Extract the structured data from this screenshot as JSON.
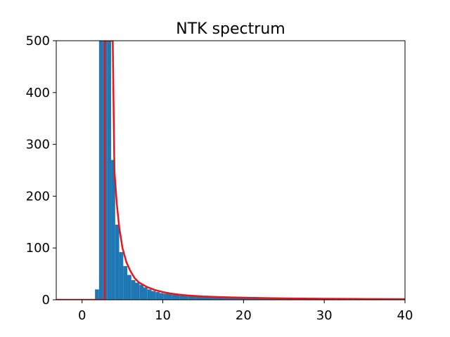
{
  "chart_data": {
    "type": "bar",
    "title": "NTK spectrum",
    "xlabel": "",
    "ylabel": "",
    "xlim": [
      -3.2,
      40
    ],
    "ylim": [
      0,
      500
    ],
    "xticks": [
      0,
      10,
      20,
      30,
      40
    ],
    "yticks": [
      0,
      100,
      200,
      300,
      400,
      500
    ],
    "grid": false,
    "legend": "none",
    "colors": {
      "bars": "#1f77b4",
      "curve": "#e8151b",
      "axes": "#000000",
      "background": "#ffffff"
    },
    "histogram": {
      "bin_edges": [
        1.6,
        2.1,
        2.6,
        3.1,
        3.6,
        4.1,
        4.6,
        5.1,
        5.6,
        6.1,
        6.6,
        7.1,
        7.6,
        8.1,
        8.6,
        9.1,
        9.6,
        10.1,
        11.1,
        12.1,
        13.1,
        14.1,
        16.1,
        18.1,
        20.1,
        24.1,
        28.1,
        32.1,
        36.1,
        40.0
      ],
      "counts": [
        20,
        500,
        500,
        500,
        270,
        145,
        92,
        65,
        48,
        38,
        33,
        29,
        24,
        20,
        17,
        15,
        13,
        12,
        10,
        9,
        8,
        7,
        6,
        5,
        4,
        3,
        2.5,
        2,
        1.5
      ]
    },
    "density_curve": {
      "x": [
        -3.2,
        2.8,
        2.8,
        2.9,
        3.2,
        3.6,
        3.8,
        4.0,
        4.3,
        4.6,
        5.0,
        5.5,
        6.0,
        6.5,
        7.0,
        8.0,
        9.0,
        10.0,
        11.0,
        12.0,
        13.0,
        15.0,
        17.0,
        20.0,
        23.0,
        26.0,
        30.0,
        35.0,
        40.0
      ],
      "y": [
        0,
        0,
        500,
        500,
        500,
        500,
        500,
        250,
        185,
        140,
        100,
        72,
        55,
        42,
        34,
        25,
        19,
        15,
        12,
        10,
        8.5,
        6.5,
        5.2,
        4,
        3.2,
        2.6,
        2.1,
        1.6,
        1.2
      ]
    }
  }
}
